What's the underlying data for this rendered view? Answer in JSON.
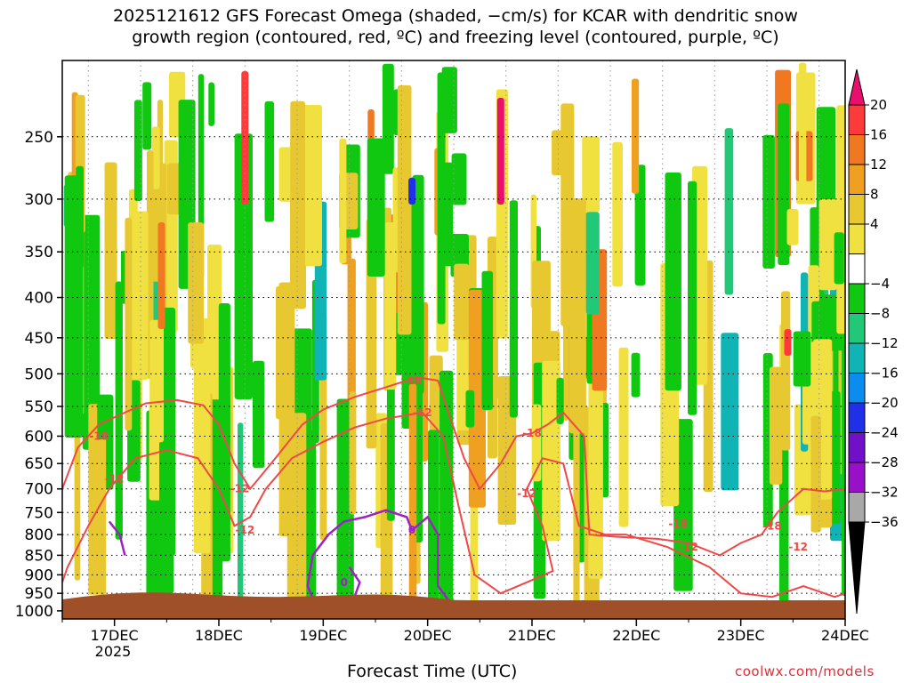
{
  "chart_data": {
    "type": "heatmap",
    "title_line1": "2025121612 GFS Forecast Omega (shaded, −cm/s) for KCAR with dendritic snow",
    "title_line2": "growth region (contoured, red, ºC) and freezing level (contoured, purple, ºC)",
    "xlabel": "Forecast Time (UTC)",
    "ylabel": "",
    "x_ticks": [
      "17DEC",
      "18DEC",
      "19DEC",
      "20DEC",
      "21DEC",
      "22DEC",
      "23DEC",
      "24DEC"
    ],
    "x_tick_year": "2025",
    "x_range_days": [
      16.5,
      24.0
    ],
    "y_ticks": [
      250,
      300,
      350,
      400,
      450,
      500,
      550,
      600,
      650,
      700,
      750,
      800,
      850,
      900,
      950,
      1000
    ],
    "y_range_hpa": [
      200,
      1000
    ],
    "y_scale": "log-pressure (inverted)",
    "grid": "dotted",
    "colorbar": {
      "labels": [
        "20",
        "16",
        "12",
        "8",
        "4",
        "−4",
        "−8",
        "−12",
        "−16",
        "−20",
        "−24",
        "−28",
        "−32",
        "−36"
      ],
      "colors": [
        "#e8106c",
        "#ff3a3a",
        "#f07820",
        "#f0a020",
        "#e8c830",
        "#f0e040",
        "#ffffff",
        "#10c810",
        "#20c878",
        "#10b4b4",
        "#0a8cf0",
        "#2030e8",
        "#7010c8",
        "#9a10c8",
        "#a8a8a8",
        "#000000"
      ],
      "placement": "right"
    },
    "contours": {
      "dendritic_label_values": [
        "-18",
        "-12"
      ],
      "freezing_label_values": [
        "0"
      ],
      "dendritic_color": "#f04848",
      "freezing_color": "#a020c8"
    },
    "terrain_color": "#a05028",
    "credit": "coolwx.com/models"
  }
}
